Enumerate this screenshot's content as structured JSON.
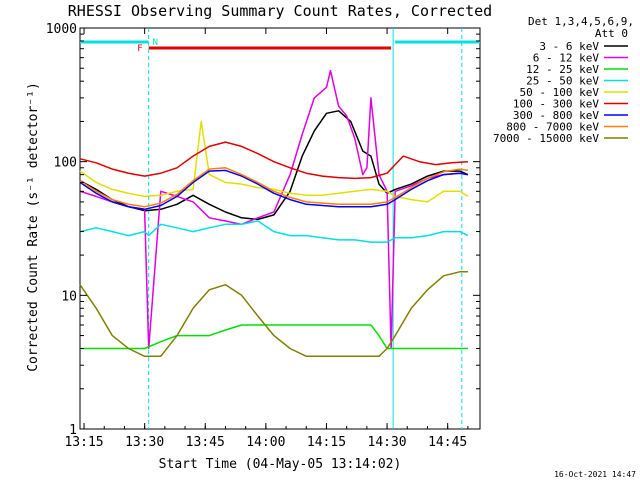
{
  "chart_data": {
    "type": "line",
    "title": "RHESSI Observing Summary Count Rates, Corrected",
    "xlabel": "Start Time (04-May-05 13:14:02)",
    "ylabel": "Corrected Count Rate (s⁻¹ detector⁻¹)",
    "x_ticks": [
      "13:15",
      "13:30",
      "13:45",
      "14:00",
      "14:15",
      "14:30",
      "14:45"
    ],
    "x_tick_minutes": [
      1,
      16,
      31,
      46,
      61,
      76,
      91
    ],
    "xlim_minutes": [
      0,
      99
    ],
    "y_scale": "log",
    "ylim": [
      1,
      1000
    ],
    "y_ticks": [
      "1",
      "10",
      "100",
      "1000"
    ],
    "y_tick_values": [
      1,
      10,
      100,
      1000
    ],
    "legend_header": [
      "Det 1,3,4,5,6,9,",
      "Att 0"
    ],
    "legend_position": "top-right outside",
    "timestamp": "16-Oct-2021 14:47",
    "annotations": {
      "flag_F": "F",
      "flag_N": "N",
      "night_bar_color": "#00e0e0",
      "flare_bar_color": "#e00000",
      "night_segments_minutes": [
        [
          0,
          17
        ],
        [
          78,
          99
        ]
      ],
      "flare_segment_minutes": [
        17,
        77
      ],
      "night_boundaries_minutes": [
        17,
        77.5,
        94.5
      ]
    },
    "series": [
      {
        "name": "3 - 6 keV",
        "color": "#000000",
        "x": [
          0,
          4,
          8,
          12,
          16,
          20,
          24,
          28,
          32,
          36,
          40,
          44,
          48,
          52,
          55,
          58,
          61,
          64,
          67,
          70,
          72,
          74,
          76,
          78,
          82,
          86,
          90,
          94,
          96
        ],
        "y": [
          72,
          62,
          52,
          46,
          43,
          44,
          48,
          56,
          48,
          42,
          38,
          37,
          40,
          60,
          110,
          170,
          230,
          240,
          200,
          120,
          110,
          68,
          58,
          62,
          68,
          78,
          85,
          85,
          80
        ]
      },
      {
        "name": "6 - 12 keV",
        "color": "#e000e0",
        "x": [
          0,
          4,
          8,
          12,
          16,
          17,
          20,
          24,
          28,
          32,
          36,
          40,
          44,
          48,
          52,
          55,
          58,
          61,
          62,
          64,
          66,
          68,
          70,
          71,
          72,
          74,
          76,
          77,
          78,
          82,
          86,
          90,
          94,
          96
        ],
        "y": [
          60,
          55,
          50,
          46,
          44,
          4,
          60,
          55,
          50,
          38,
          36,
          34,
          38,
          42,
          80,
          160,
          300,
          360,
          480,
          260,
          220,
          150,
          80,
          90,
          300,
          80,
          60,
          4,
          60,
          66,
          75,
          80,
          82,
          80
        ]
      },
      {
        "name": "12 - 25 keV",
        "color": "#00e000",
        "x": [
          0,
          4,
          8,
          12,
          16,
          20,
          24,
          28,
          32,
          36,
          40,
          44,
          48,
          52,
          56,
          60,
          64,
          68,
          72,
          74,
          76,
          78,
          82,
          86,
          90,
          94,
          96
        ],
        "y": [
          4,
          4,
          4,
          4,
          4,
          4.5,
          5,
          5,
          5,
          5.5,
          6,
          6,
          6,
          6,
          6,
          6,
          6,
          6,
          6,
          5,
          4,
          4,
          4,
          4,
          4,
          4,
          4
        ]
      },
      {
        "name": "25 - 50 keV",
        "color": "#00e0e0",
        "x": [
          0,
          4,
          8,
          12,
          16,
          17,
          20,
          24,
          28,
          32,
          36,
          40,
          44,
          48,
          52,
          56,
          60,
          64,
          68,
          72,
          76,
          78,
          82,
          86,
          90,
          94,
          96
        ],
        "y": [
          30,
          32,
          30,
          28,
          30,
          28,
          34,
          32,
          30,
          32,
          34,
          34,
          36,
          30,
          28,
          28,
          27,
          26,
          26,
          25,
          25,
          27,
          27,
          28,
          30,
          30,
          28
        ]
      },
      {
        "name": "50 - 100 keV",
        "color": "#e0e000",
        "x": [
          0,
          4,
          8,
          12,
          16,
          20,
          24,
          28,
          30,
          32,
          36,
          40,
          44,
          48,
          52,
          56,
          60,
          64,
          68,
          72,
          76,
          78,
          82,
          86,
          90,
          94,
          96
        ],
        "y": [
          85,
          70,
          62,
          58,
          55,
          56,
          60,
          62,
          200,
          80,
          70,
          68,
          64,
          62,
          58,
          56,
          56,
          58,
          60,
          62,
          60,
          55,
          52,
          50,
          60,
          60,
          55
        ]
      },
      {
        "name": "100 - 300 keV",
        "color": "#e00000",
        "x": [
          0,
          4,
          8,
          12,
          16,
          20,
          24,
          28,
          32,
          36,
          40,
          44,
          48,
          52,
          56,
          60,
          64,
          68,
          72,
          76,
          78,
          80,
          84,
          88,
          92,
          96
        ],
        "y": [
          105,
          98,
          88,
          82,
          78,
          82,
          90,
          110,
          130,
          140,
          130,
          115,
          100,
          90,
          82,
          78,
          76,
          75,
          76,
          82,
          95,
          110,
          100,
          95,
          98,
          100
        ]
      },
      {
        "name": "300 - 800 keV",
        "color": "#0000ff",
        "x": [
          0,
          4,
          8,
          12,
          16,
          20,
          24,
          28,
          32,
          36,
          40,
          44,
          48,
          52,
          56,
          60,
          64,
          68,
          72,
          76,
          78,
          82,
          86,
          90,
          94,
          96
        ],
        "y": [
          70,
          58,
          50,
          46,
          44,
          47,
          55,
          70,
          85,
          86,
          78,
          68,
          58,
          52,
          48,
          47,
          46,
          46,
          46,
          48,
          52,
          62,
          72,
          80,
          82,
          80
        ]
      },
      {
        "name": "800 - 7000 keV",
        "color": "#ff8000",
        "x": [
          0,
          4,
          8,
          12,
          16,
          20,
          24,
          28,
          32,
          36,
          40,
          44,
          48,
          52,
          56,
          60,
          64,
          68,
          72,
          76,
          78,
          82,
          86,
          90,
          94,
          96
        ],
        "y": [
          72,
          60,
          52,
          48,
          46,
          49,
          57,
          72,
          88,
          90,
          80,
          70,
          60,
          54,
          50,
          49,
          48,
          48,
          48,
          50,
          54,
          64,
          75,
          84,
          88,
          86
        ]
      },
      {
        "name": "7000 - 15000 keV",
        "color": "#808000",
        "x": [
          0,
          4,
          8,
          12,
          16,
          20,
          24,
          28,
          32,
          36,
          40,
          44,
          48,
          52,
          56,
          60,
          64,
          68,
          72,
          74,
          76,
          78,
          82,
          86,
          90,
          94,
          96
        ],
        "y": [
          12,
          8,
          5,
          4,
          3.5,
          3.5,
          5,
          8,
          11,
          12,
          10,
          7,
          5,
          4,
          3.5,
          3.5,
          3.5,
          3.5,
          3.5,
          3.5,
          4,
          5,
          8,
          11,
          14,
          15,
          15
        ]
      }
    ]
  }
}
